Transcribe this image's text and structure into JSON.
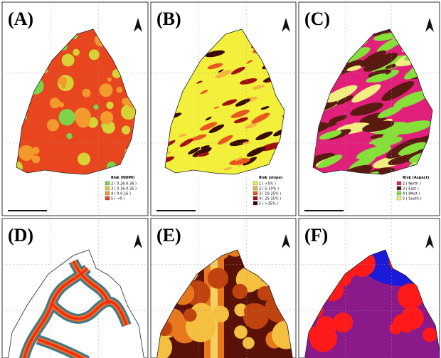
{
  "panels": [
    {
      "label": "(A)",
      "legend": {
        "title": "Risk (NDMI)",
        "items": [
          {
            "label": "2 ( 0.26-0.36 )",
            "color": "#7cd44a"
          },
          {
            "label": "3 ( 0.16-0.26 )",
            "color": "#d7d236"
          },
          {
            "label": "4 ( 0-0.16 )",
            "color": "#f39a2c"
          },
          {
            "label": "5 ( <0 )",
            "color": "#e8461e"
          }
        ]
      }
    },
    {
      "label": "(B)",
      "legend": {
        "title": "Risk (slope)",
        "items": [
          {
            "label": "1 ( <5% )",
            "color": "#f2f03a"
          },
          {
            "label": "2 ( 5-10% )",
            "color": "#f5b341"
          },
          {
            "label": "3 ( 10-25% )",
            "color": "#e8571e"
          },
          {
            "label": "4 ( 25-35% )",
            "color": "#a01010"
          },
          {
            "label": "5 ( >35% )",
            "color": "#3a0a05"
          }
        ]
      }
    },
    {
      "label": "(C)",
      "legend": {
        "title": "Risk (Aspect)",
        "items": [
          {
            "label": "2 ( North )",
            "color": "#e0207a"
          },
          {
            "label": "3 ( East )",
            "color": "#5a1a12"
          },
          {
            "label": "4 ( West )",
            "color": "#86e03a"
          },
          {
            "label": "5 ( South )",
            "color": "#f0ee80"
          }
        ]
      }
    },
    {
      "label": "(D)"
    },
    {
      "label": "(E)"
    },
    {
      "label": "(F)"
    }
  ]
}
